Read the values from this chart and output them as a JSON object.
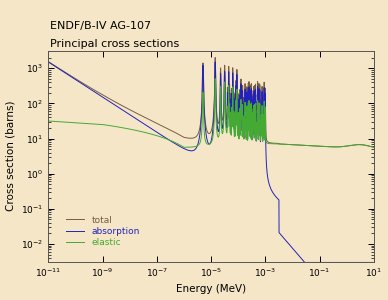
{
  "title_line1": "ENDF/B-IV AG-107",
  "title_line2": "Principal cross sections",
  "xlabel": "Energy (MeV)",
  "ylabel": "Cross section (barns)",
  "xlim_log": [
    -11,
    1
  ],
  "ylim_log": [
    -2.5,
    3.5
  ],
  "bg_color": "#f5e6c8",
  "plot_bg_color": "#f5e6c8",
  "color_total": "#7a5c40",
  "color_absorption": "#2222bb",
  "color_elastic": "#44aa33",
  "legend_labels": [
    "total",
    "absorption",
    "elastic"
  ]
}
